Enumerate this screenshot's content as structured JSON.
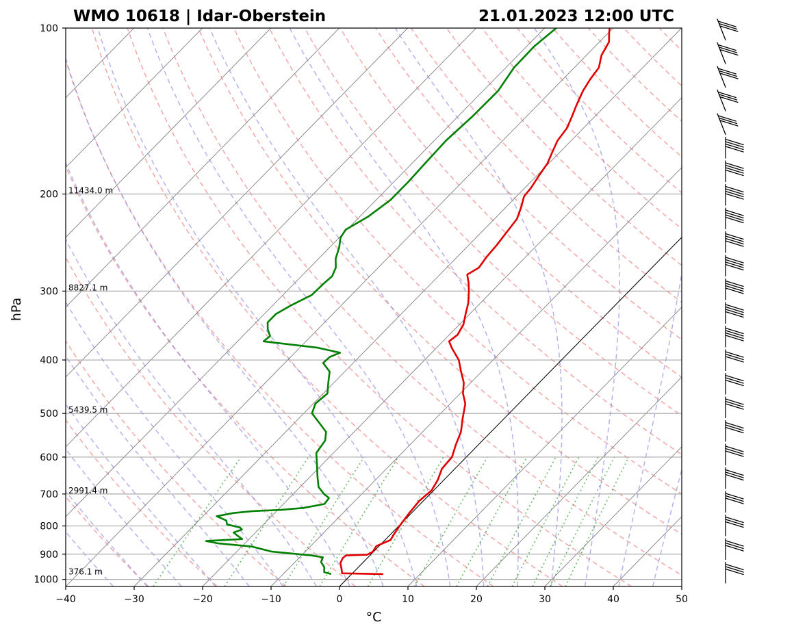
{
  "chart_data": {
    "type": "line",
    "diagram": "Skew-T log-P",
    "title_left": "WMO 10618 | Idar-Oberstein",
    "title_right": "21.01.2023 12:00 UTC",
    "xlabel": "°C",
    "ylabel": "hPa",
    "xlim": [
      -40,
      50
    ],
    "ylim": [
      1030,
      100
    ],
    "y_scale": "log",
    "x_ticks": [
      -40,
      -30,
      -20,
      -10,
      0,
      10,
      20,
      30,
      40,
      50
    ],
    "x_tick_labels": [
      "−40",
      "−30",
      "−20",
      "−10",
      "0",
      "10",
      "20",
      "30",
      "40",
      "50"
    ],
    "y_ticks": [
      100,
      200,
      300,
      400,
      500,
      600,
      700,
      800,
      900,
      1000
    ],
    "y_tick_labels": [
      "100",
      "200",
      "300",
      "400",
      "500",
      "600",
      "700",
      "800",
      "900",
      "1000"
    ],
    "grid": true,
    "height_labels": [
      {
        "p": 200,
        "text": "11434.0 m"
      },
      {
        "p": 300,
        "text": "8827.1 m"
      },
      {
        "p": 500,
        "text": "5439.5 m"
      },
      {
        "p": 700,
        "text": "2991.4 m"
      },
      {
        "p": 983,
        "text": "376.1 m"
      }
    ],
    "reference_lines": {
      "isotherm_0C": true,
      "dry_adiabats": "dashed red",
      "moist_adiabats": "dashed blue",
      "mixing_ratio_lines": "dotted green"
    },
    "series": [
      {
        "key": "temperature",
        "color": "#e00000",
        "points": [
          {
            "p": 978,
            "t": 4.6
          },
          {
            "p": 975,
            "t": -1.5
          },
          {
            "p": 955,
            "t": -2.3
          },
          {
            "p": 935,
            "t": -3.2
          },
          {
            "p": 915,
            "t": -3.6
          },
          {
            "p": 905,
            "t": -3.5
          },
          {
            "p": 902,
            "t": -0.5
          },
          {
            "p": 892,
            "t": -0.1
          },
          {
            "p": 870,
            "t": -0.4
          },
          {
            "p": 848,
            "t": 0.8
          },
          {
            "p": 830,
            "t": 0.5
          },
          {
            "p": 800,
            "t": 0.1
          },
          {
            "p": 760,
            "t": -0.3
          },
          {
            "p": 720,
            "t": -0.6
          },
          {
            "p": 690,
            "t": -0.3
          },
          {
            "p": 660,
            "t": -0.9
          },
          {
            "p": 630,
            "t": -1.9
          },
          {
            "p": 600,
            "t": -2.1
          },
          {
            "p": 570,
            "t": -3.3
          },
          {
            "p": 540,
            "t": -4.4
          },
          {
            "p": 510,
            "t": -6.1
          },
          {
            "p": 480,
            "t": -7.8
          },
          {
            "p": 460,
            "t": -9.6
          },
          {
            "p": 440,
            "t": -11.0
          },
          {
            "p": 420,
            "t": -13.0
          },
          {
            "p": 400,
            "t": -15.0
          },
          {
            "p": 380,
            "t": -17.8
          },
          {
            "p": 370,
            "t": -19.1
          },
          {
            "p": 360,
            "t": -18.8
          },
          {
            "p": 345,
            "t": -19.4
          },
          {
            "p": 330,
            "t": -20.6
          },
          {
            "p": 315,
            "t": -21.8
          },
          {
            "p": 300,
            "t": -23.4
          },
          {
            "p": 290,
            "t": -24.6
          },
          {
            "p": 280,
            "t": -26.0
          },
          {
            "p": 272,
            "t": -25.3
          },
          {
            "p": 260,
            "t": -25.7
          },
          {
            "p": 248,
            "t": -25.9
          },
          {
            "p": 235,
            "t": -26.3
          },
          {
            "p": 222,
            "t": -26.7
          },
          {
            "p": 212,
            "t": -27.7
          },
          {
            "p": 202,
            "t": -28.9
          },
          {
            "p": 195,
            "t": -29.1
          },
          {
            "p": 185,
            "t": -29.7
          },
          {
            "p": 176,
            "t": -30.2
          },
          {
            "p": 168,
            "t": -31.1
          },
          {
            "p": 160,
            "t": -32.0
          },
          {
            "p": 152,
            "t": -32.4
          },
          {
            "p": 145,
            "t": -33.3
          },
          {
            "p": 138,
            "t": -34.3
          },
          {
            "p": 130,
            "t": -35.4
          },
          {
            "p": 124,
            "t": -36.0
          },
          {
            "p": 118,
            "t": -36.4
          },
          {
            "p": 112,
            "t": -37.8
          },
          {
            "p": 106,
            "t": -38.6
          },
          {
            "p": 102,
            "t": -39.9
          },
          {
            "p": 100,
            "t": -40.5
          }
        ]
      },
      {
        "key": "dewpoint",
        "color": "#008000",
        "points": [
          {
            "p": 978,
            "t": -3.0
          },
          {
            "p": 970,
            "t": -4.3
          },
          {
            "p": 950,
            "t": -5.0
          },
          {
            "p": 930,
            "t": -6.2
          },
          {
            "p": 912,
            "t": -6.6
          },
          {
            "p": 905,
            "t": -8.5
          },
          {
            "p": 890,
            "t": -15.0
          },
          {
            "p": 872,
            "t": -18.5
          },
          {
            "p": 860,
            "t": -24.0
          },
          {
            "p": 852,
            "t": -26.0
          },
          {
            "p": 845,
            "t": -21.0
          },
          {
            "p": 835,
            "t": -22.0
          },
          {
            "p": 822,
            "t": -23.2
          },
          {
            "p": 812,
            "t": -22.4
          },
          {
            "p": 805,
            "t": -23.0
          },
          {
            "p": 795,
            "t": -25.3
          },
          {
            "p": 782,
            "t": -26.0
          },
          {
            "p": 768,
            "t": -28.0
          },
          {
            "p": 758,
            "t": -26.0
          },
          {
            "p": 752,
            "t": -23.5
          },
          {
            "p": 748,
            "t": -19.5
          },
          {
            "p": 742,
            "t": -16.5
          },
          {
            "p": 730,
            "t": -14.0
          },
          {
            "p": 712,
            "t": -14.2
          },
          {
            "p": 700,
            "t": -15.5
          },
          {
            "p": 680,
            "t": -17.3
          },
          {
            "p": 650,
            "t": -19.0
          },
          {
            "p": 620,
            "t": -20.7
          },
          {
            "p": 590,
            "t": -22.5
          },
          {
            "p": 560,
            "t": -23.0
          },
          {
            "p": 540,
            "t": -24.1
          },
          {
            "p": 520,
            "t": -26.4
          },
          {
            "p": 500,
            "t": -28.8
          },
          {
            "p": 480,
            "t": -29.7
          },
          {
            "p": 460,
            "t": -29.4
          },
          {
            "p": 440,
            "t": -30.8
          },
          {
            "p": 420,
            "t": -32.2
          },
          {
            "p": 405,
            "t": -34.4
          },
          {
            "p": 395,
            "t": -34.3
          },
          {
            "p": 388,
            "t": -33.4
          },
          {
            "p": 380,
            "t": -37.4
          },
          {
            "p": 370,
            "t": -46.2
          },
          {
            "p": 362,
            "t": -46.0
          },
          {
            "p": 352,
            "t": -47.3
          },
          {
            "p": 342,
            "t": -48.3
          },
          {
            "p": 330,
            "t": -48.3
          },
          {
            "p": 318,
            "t": -47.3
          },
          {
            "p": 305,
            "t": -45.8
          },
          {
            "p": 292,
            "t": -45.7
          },
          {
            "p": 282,
            "t": -45.5
          },
          {
            "p": 272,
            "t": -46.2
          },
          {
            "p": 262,
            "t": -47.5
          },
          {
            "p": 250,
            "t": -48.6
          },
          {
            "p": 240,
            "t": -49.8
          },
          {
            "p": 232,
            "t": -50.2
          },
          {
            "p": 220,
            "t": -48.8
          },
          {
            "p": 205,
            "t": -47.9
          },
          {
            "p": 190,
            "t": -47.9
          },
          {
            "p": 175,
            "t": -48.1
          },
          {
            "p": 160,
            "t": -48.3
          },
          {
            "p": 145,
            "t": -47.9
          },
          {
            "p": 130,
            "t": -47.8
          },
          {
            "p": 118,
            "t": -48.8
          },
          {
            "p": 108,
            "t": -48.9
          },
          {
            "p": 100,
            "t": -48.3
          }
        ]
      }
    ]
  }
}
